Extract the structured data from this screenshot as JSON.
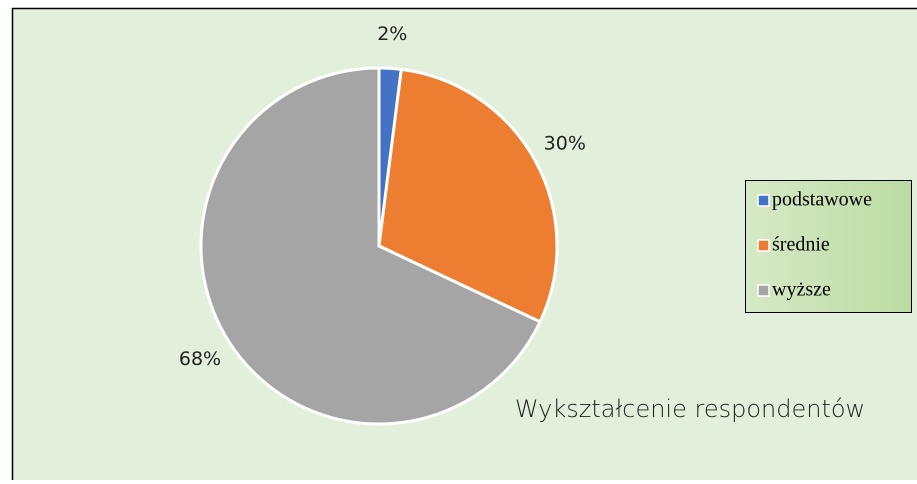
{
  "chart_data": {
    "type": "pie",
    "title": "Wykształcenie respondentów",
    "categories": [
      "podstawowe",
      "średnie",
      "wyższe"
    ],
    "values": [
      2,
      30,
      68
    ],
    "value_labels": [
      "2%",
      "30%",
      "68%"
    ],
    "colors": [
      "#4472c4",
      "#ed7d31",
      "#a5a5a5"
    ],
    "legend": "right"
  }
}
